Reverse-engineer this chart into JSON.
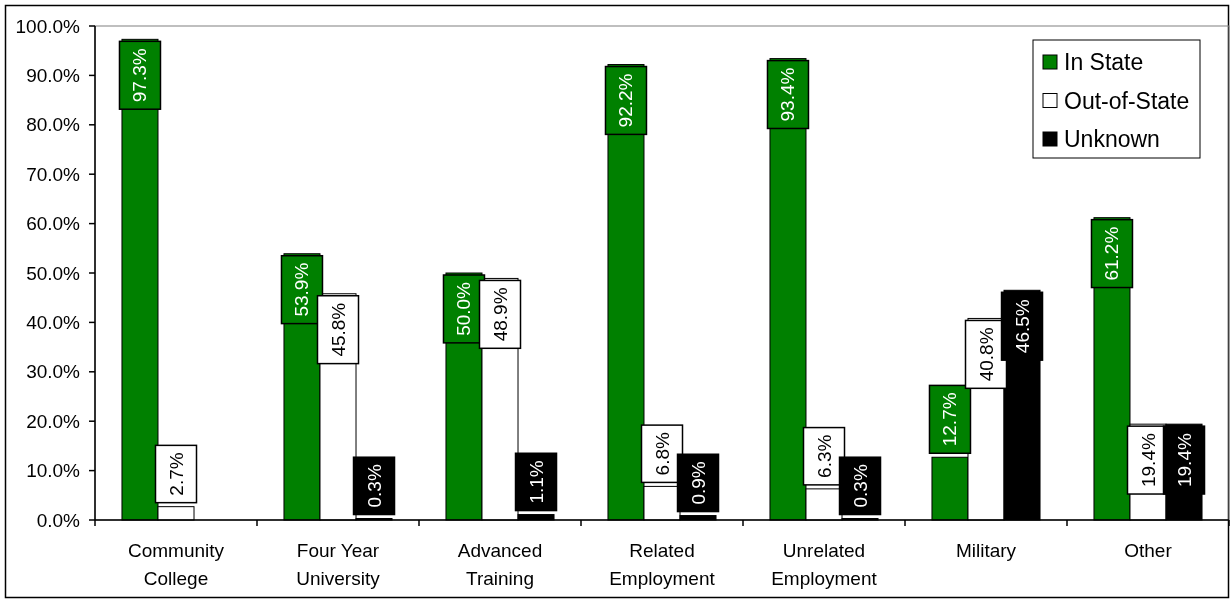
{
  "chart_data": {
    "type": "bar",
    "categories": [
      "Community College",
      "Four Year University",
      "Advanced Training",
      "Related Employment",
      "Unrelated Employment",
      "Military",
      "Other"
    ],
    "series": [
      {
        "name": "In State",
        "color": "#008000",
        "values": [
          97.3,
          53.9,
          50.0,
          92.2,
          93.4,
          12.7,
          61.2
        ],
        "value_labels": [
          "97.3%",
          "53.9%",
          "50.0%",
          "92.2%",
          "93.4%",
          "12.7%",
          "61.2%"
        ]
      },
      {
        "name": "Out-of-State",
        "color": "#ffffff",
        "values": [
          2.7,
          45.8,
          48.9,
          6.8,
          6.3,
          40.8,
          19.4
        ],
        "value_labels": [
          "2.7%",
          "45.8%",
          "48.9%",
          "6.8%",
          "6.3%",
          "40.8%",
          "19.4%"
        ]
      },
      {
        "name": "Unknown",
        "color": "#000000",
        "values": [
          null,
          0.3,
          1.1,
          0.9,
          0.3,
          46.5,
          19.4
        ],
        "value_labels": [
          null,
          "0.3%",
          "1.1%",
          "0.9%",
          "0.3%",
          "46.5%",
          "19.4%"
        ]
      }
    ],
    "ylim": [
      0,
      100
    ],
    "yticks": [
      {
        "value": 0,
        "label": "0.0%"
      },
      {
        "value": 10,
        "label": "10.0%"
      },
      {
        "value": 20,
        "label": "20.0%"
      },
      {
        "value": 30,
        "label": "30.0%"
      },
      {
        "value": 40,
        "label": "40.0%"
      },
      {
        "value": 50,
        "label": "50.0%"
      },
      {
        "value": 60,
        "label": "60.0%"
      },
      {
        "value": 70,
        "label": "70.0%"
      },
      {
        "value": 80,
        "label": "80.0%"
      },
      {
        "value": 90,
        "label": "90.0%"
      },
      {
        "value": 100,
        "label": "100.0%"
      }
    ],
    "legend": "top right"
  }
}
